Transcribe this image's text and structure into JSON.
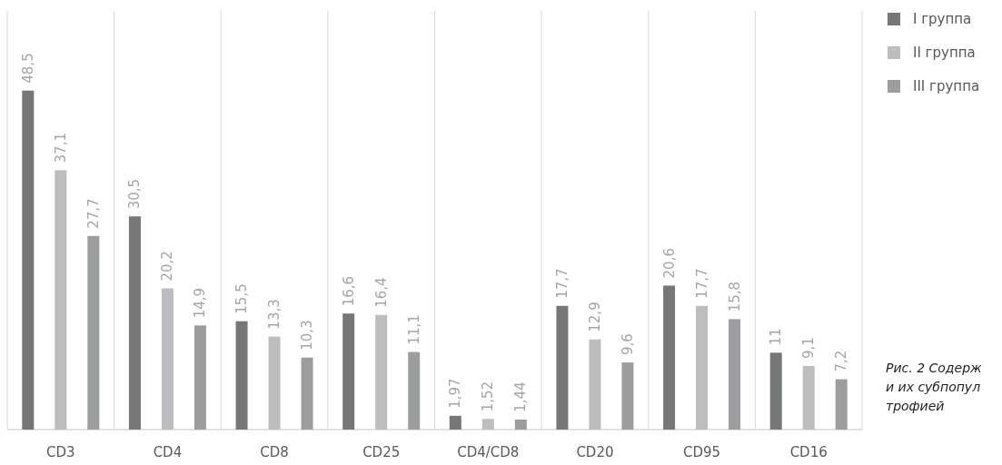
{
  "chart_data": {
    "type": "bar",
    "categories": [
      "CD3",
      "CD4",
      "CD8",
      "CD25",
      "CD4/CD8",
      "CD20",
      "CD95",
      "CD16"
    ],
    "series": [
      {
        "name": "I группа",
        "color": "#767779",
        "values": [
          48.5,
          30.5,
          15.5,
          16.6,
          1.97,
          17.7,
          20.6,
          11
        ],
        "value_labels": [
          "48,5",
          "30,5",
          "15,5",
          "16,6",
          "1,97",
          "17,7",
          "20,6",
          "11"
        ]
      },
      {
        "name": "II группа",
        "color": "#bcbdbf",
        "values": [
          37.1,
          20.2,
          13.3,
          16.4,
          1.52,
          12.9,
          17.7,
          9.1
        ],
        "value_labels": [
          "37,1",
          "20,2",
          "13,3",
          "16,4",
          "1,52",
          "12,9",
          "17,7",
          "9,1"
        ]
      },
      {
        "name": "III группа",
        "color": "#9c9d9f",
        "values": [
          27.7,
          14.9,
          10.3,
          11.1,
          1.44,
          9.6,
          15.8,
          7.2
        ],
        "value_labels": [
          "27,7",
          "14,9",
          "10,3",
          "11,1",
          "1,44",
          "9,6",
          "15,8",
          "7,2"
        ]
      }
    ],
    "grid": "x",
    "legend": "right",
    "annotations": [
      "Рис. 2 Содерж\nи их субпопул\nтрофией"
    ]
  }
}
